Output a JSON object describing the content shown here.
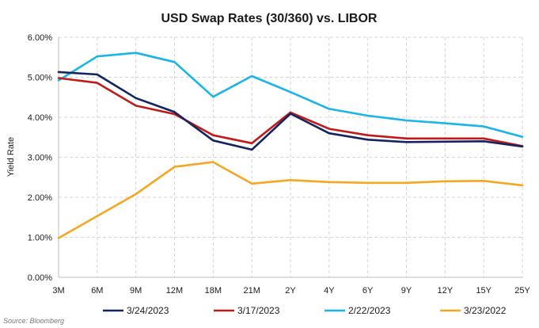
{
  "chart_data": {
    "type": "line",
    "title": "USD Swap Rates (30/360) vs. LIBOR",
    "xlabel": "",
    "ylabel": "Yield Rate",
    "categories": [
      "3M",
      "6M",
      "9M",
      "12M",
      "18M",
      "21M",
      "2Y",
      "4Y",
      "6Y",
      "9Y",
      "12Y",
      "15Y",
      "25Y"
    ],
    "ylim": [
      0,
      6
    ],
    "yticks": [
      "0.00%",
      "1.00%",
      "2.00%",
      "3.00%",
      "4.00%",
      "5.00%",
      "6.00%"
    ],
    "grid": true,
    "legend_position": "bottom",
    "series": [
      {
        "name": "3/24/2023",
        "color": "#14245e",
        "values": [
          5.13,
          5.07,
          4.48,
          4.13,
          3.42,
          3.19,
          4.09,
          3.6,
          3.44,
          3.38,
          3.39,
          3.4,
          3.27
        ]
      },
      {
        "name": "3/17/2023",
        "color": "#c21a1a",
        "values": [
          4.98,
          4.86,
          4.29,
          4.08,
          3.55,
          3.35,
          4.12,
          3.71,
          3.55,
          3.47,
          3.47,
          3.47,
          3.28
        ]
      },
      {
        "name": "2/22/2023",
        "color": "#1ab4e8",
        "values": [
          4.92,
          5.52,
          5.61,
          5.38,
          4.51,
          5.03,
          4.63,
          4.21,
          4.04,
          3.92,
          3.85,
          3.77,
          3.51
        ]
      },
      {
        "name": "3/23/2022",
        "color": "#f5a623",
        "values": [
          0.98,
          1.53,
          2.08,
          2.76,
          2.88,
          2.34,
          2.43,
          2.38,
          2.36,
          2.36,
          2.4,
          2.41,
          2.3
        ]
      }
    ],
    "source": "Source: Bloomberg"
  }
}
